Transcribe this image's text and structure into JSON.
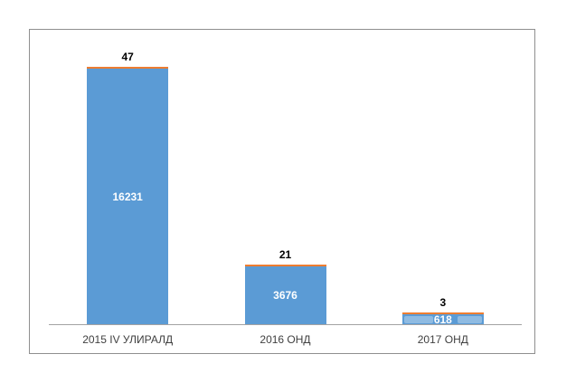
{
  "chart_data": {
    "type": "bar",
    "variant": "stacked-column",
    "title": "",
    "xlabel": "",
    "ylabel": "",
    "categories": [
      "2015 IV УЛИРАЛД",
      "2016 ОНД",
      "2017 ОНД"
    ],
    "series": [
      {
        "name": "series-1",
        "color": "#5B9BD5",
        "values": [
          16231,
          3676,
          618
        ],
        "data_labels": {
          "position": "inside-center",
          "color": "#FFFFFF",
          "bold": true
        }
      },
      {
        "name": "series-2",
        "color": "#ED7D31",
        "values": [
          47,
          21,
          3
        ],
        "data_labels": {
          "position": "above-stack",
          "color": "#000000",
          "bold": true
        }
      }
    ],
    "ylim": [
      0,
      16278
    ],
    "grid": false,
    "legend": "none",
    "axis": {
      "line_color": "#A3A3A3",
      "category_label_color": "#404040"
    },
    "frame_border_color": "#8F8F8F",
    "background": "#FFFFFF"
  }
}
